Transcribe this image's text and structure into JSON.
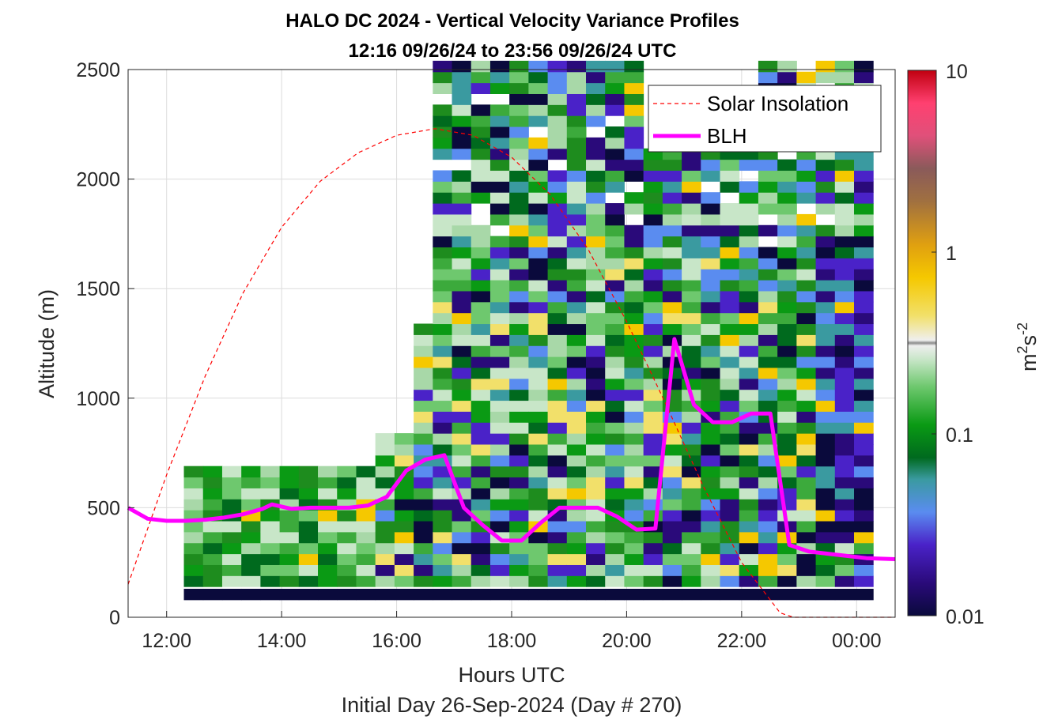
{
  "chart_data": {
    "type": "heatmap",
    "title": "HALO DC 2024 - Vertical Velocity Variance Profiles",
    "subtitle": "12:16 09/26/24 to 23:56 09/26/24  UTC",
    "xlabel": "Hours UTC",
    "footer": "Initial Day 26-Sep-2024 (Day # 270)",
    "ylabel": "Altitude (m)",
    "colorbar_label": "m2s-2",
    "colorbar_label_parts": {
      "base1": "m",
      "sup1": "2",
      "base2": "s",
      "sup2": "-2"
    },
    "colorbar_scale": "log",
    "colorbar_range": [
      0.01,
      10
    ],
    "colorbar_ticks": [
      "0.01",
      "0.1",
      "1",
      "10"
    ],
    "colorbar_tick_values": [
      0.01,
      0.1,
      1,
      10
    ],
    "xlim": [
      11.33,
      24.67
    ],
    "ylim": [
      0,
      2500
    ],
    "xticks": [
      12,
      14,
      16,
      18,
      20,
      22,
      24
    ],
    "xtick_labels": [
      "12:00",
      "14:00",
      "16:00",
      "18:00",
      "20:00",
      "22:00",
      "00:00"
    ],
    "yticks": [
      0,
      500,
      1000,
      1500,
      2000,
      2500
    ],
    "ytick_labels": [
      "0",
      "500",
      "1000",
      "1500",
      "2000",
      "2500"
    ],
    "grid": true,
    "legend_position": "top-right",
    "series": [
      {
        "name": "Solar Insolation",
        "style": "dashed",
        "color": "#ff0000",
        "x": [
          11.33,
          12.0,
          12.67,
          13.33,
          14.0,
          14.67,
          15.33,
          16.0,
          16.67,
          17.33,
          18.0,
          18.67,
          19.33,
          20.0,
          20.67,
          21.33,
          22.0,
          22.67,
          22.9,
          24.67
        ],
        "y": [
          150,
          650,
          1100,
          1480,
          1780,
          1990,
          2120,
          2200,
          2230,
          2200,
          2100,
          1930,
          1680,
          1350,
          980,
          600,
          250,
          20,
          0,
          0
        ]
      },
      {
        "name": "BLH",
        "style": "solid",
        "color": "#ff00ff",
        "x": [
          11.33,
          11.67,
          12.0,
          12.33,
          12.67,
          13.0,
          13.33,
          13.67,
          13.83,
          14.17,
          14.5,
          14.83,
          15.17,
          15.5,
          15.83,
          16.17,
          16.5,
          16.83,
          17.17,
          17.5,
          17.83,
          18.17,
          18.5,
          18.83,
          19.17,
          19.5,
          19.83,
          20.17,
          20.5,
          20.83,
          21.17,
          21.5,
          21.83,
          22.17,
          22.5,
          22.83,
          23.17,
          23.5,
          23.83,
          24.17,
          24.67
        ],
        "y": [
          500,
          450,
          440,
          440,
          445,
          455,
          470,
          495,
          515,
          495,
          500,
          500,
          500,
          510,
          550,
          670,
          720,
          740,
          500,
          420,
          350,
          350,
          430,
          500,
          500,
          500,
          460,
          400,
          405,
          1270,
          970,
          890,
          890,
          930,
          930,
          330,
          300,
          290,
          280,
          270,
          265
        ]
      }
    ]
  }
}
